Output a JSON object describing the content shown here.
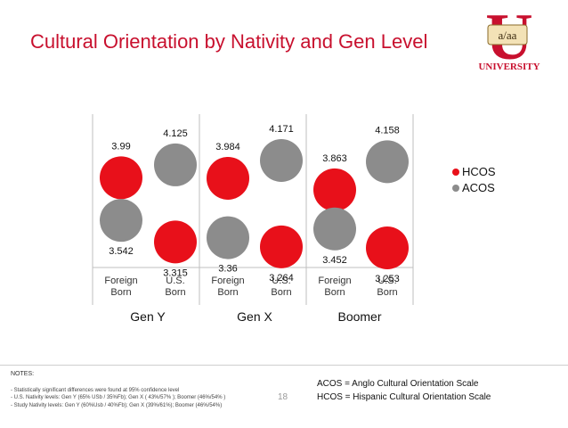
{
  "header": {
    "title": "Cultural Orientation by Nativity and Gen Level"
  },
  "logo": {
    "letter": "U",
    "badge_text": "a/aa",
    "banner_text": "UNIVERSITY"
  },
  "chart_data": {
    "type": "scatter",
    "title": "",
    "xlabel": "",
    "ylabel": "",
    "ylim": [
      3.15,
      4.35
    ],
    "groups": [
      "Gen Y",
      "Gen X",
      "Boomer"
    ],
    "categories": [
      "Foreign\nBorn",
      "U.S.\nBorn",
      "Foreign\nBorn",
      "U.S.\nBorn",
      "Foreign\nBorn",
      "U.S.\nBorn"
    ],
    "category_lines": [
      [
        "Foreign",
        "Born"
      ],
      [
        "U.S.",
        "Born"
      ],
      [
        "Foreign",
        "Born"
      ],
      [
        "U.S.",
        "Born"
      ],
      [
        "Foreign",
        "Born"
      ],
      [
        "U.S.",
        "Born"
      ]
    ],
    "series": [
      {
        "name": "HCOS",
        "color": "#e8101a",
        "values": [
          3.99,
          3.315,
          3.984,
          3.264,
          3.863,
          3.253
        ]
      },
      {
        "name": "ACOS",
        "color": "#8c8c8c",
        "values": [
          3.542,
          4.125,
          3.36,
          4.171,
          3.452,
          4.158
        ]
      }
    ],
    "labels": {
      "HCOS": [
        "3.99",
        "3.315",
        "3.984",
        "3.264",
        "3.863",
        "3.253"
      ],
      "ACOS": [
        "3.542",
        "4.125",
        "3.36",
        "4.171",
        "3.452",
        "4.158"
      ]
    },
    "legend_position": "right",
    "grid": false
  },
  "notes": {
    "title": "NOTES:",
    "lines": [
      "- Statistically significant differences were found at 95% confidence level",
      "- U.S. Nativity levels: Gen Y (65% USb / 35%Fb); Gen X ( 43%/57% ); Boomer (46%/54%  )",
      "- Study Nativity levels: Gen Y (60%Usb / 40%Fb); Gen X (39%/61%); Boomer (46%/54%)"
    ],
    "page_number": "18"
  },
  "definitions": {
    "acos": "ACOS = Anglo Cultural Orientation Scale",
    "hcos": "HCOS = Hispanic Cultural Orientation Scale"
  }
}
